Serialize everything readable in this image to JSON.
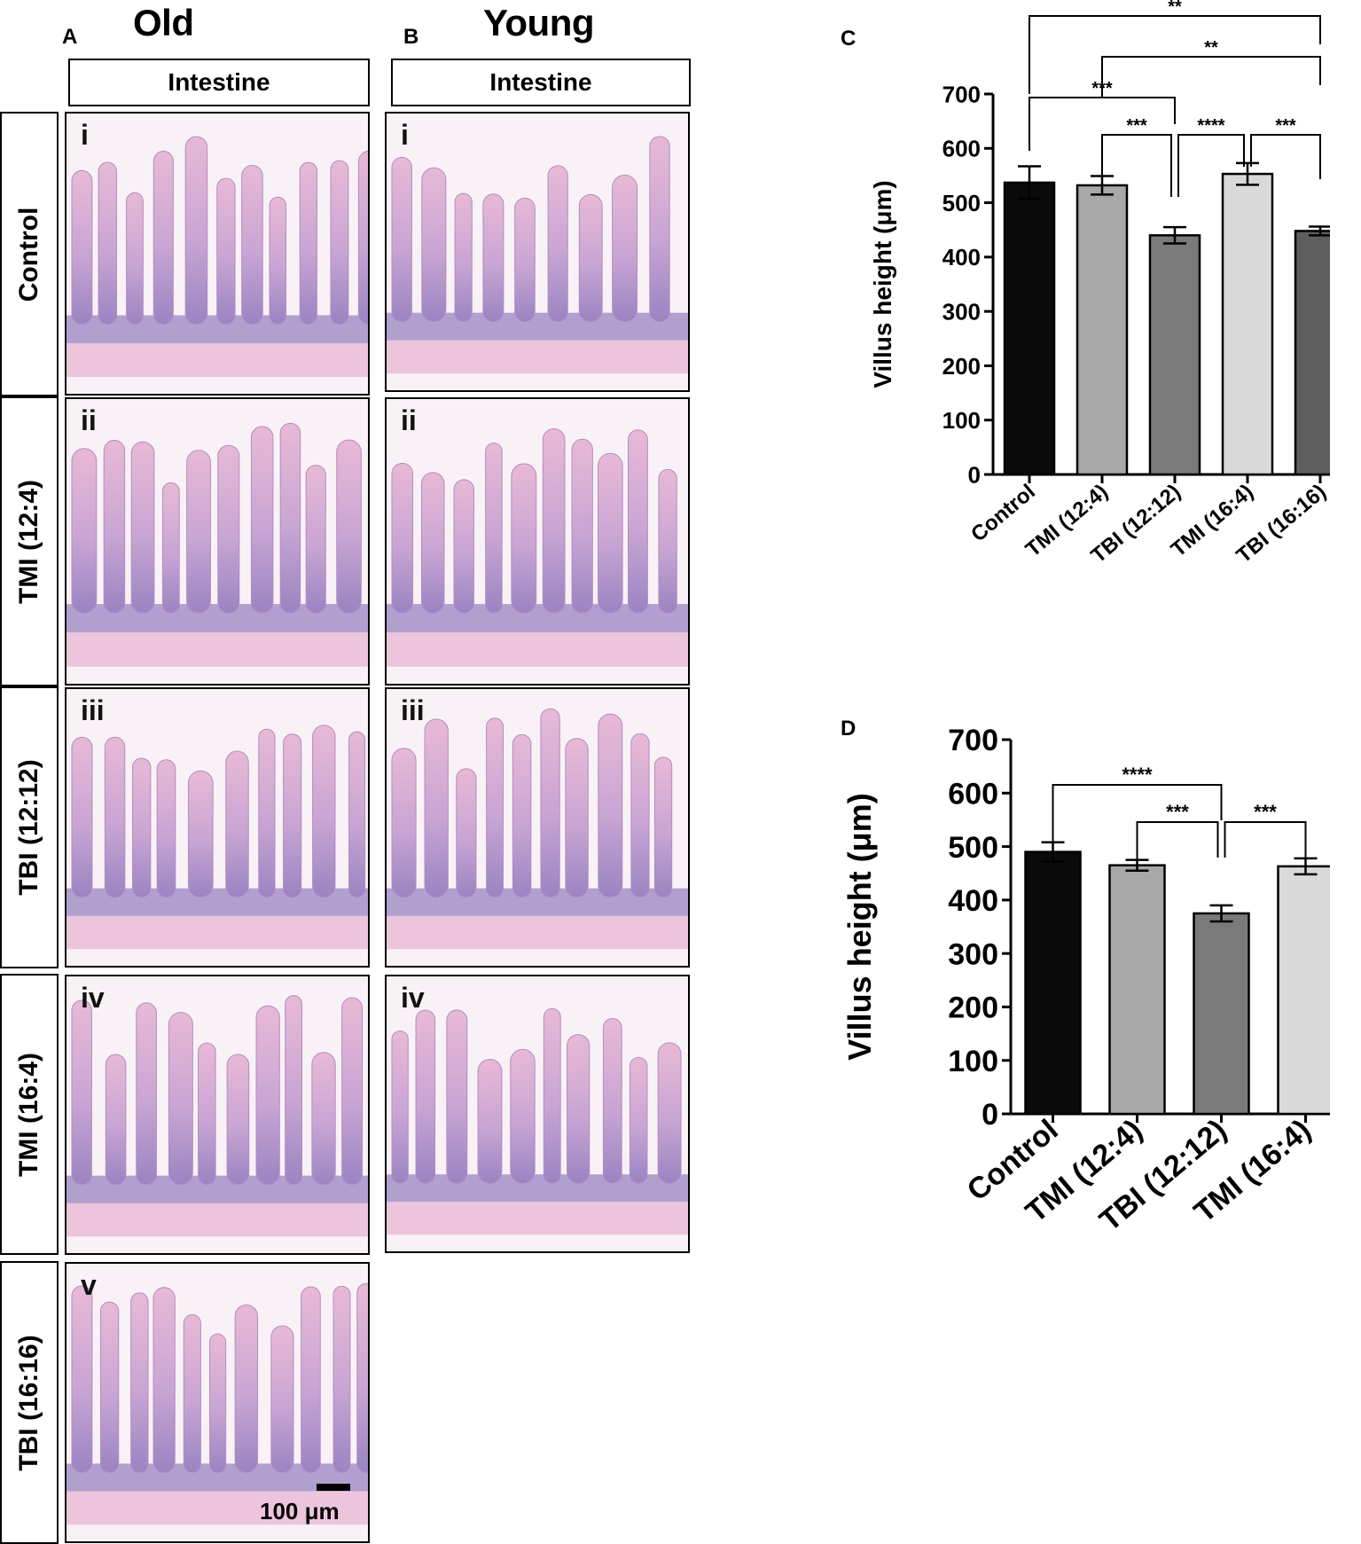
{
  "panels": {
    "A": {
      "letter": "A",
      "title": "Old",
      "header": "Intestine"
    },
    "B": {
      "letter": "B",
      "title": "Young",
      "header": "Intestine"
    },
    "C": {
      "letter": "C"
    },
    "D": {
      "letter": "D"
    }
  },
  "row_labels": [
    "Control",
    "TMI (12:4)",
    "TBI (12:12)",
    "TMI (16:4)",
    "TBI (16:16)"
  ],
  "micrograph_labels": {
    "old": [
      "i",
      "ii",
      "iii",
      "iv",
      "v"
    ],
    "young": [
      "i",
      "ii",
      "iii",
      "iv"
    ]
  },
  "scale_bar": {
    "label": "100 μm"
  },
  "colors": {
    "stain_pink": "#e8b9d6",
    "stain_purple": "#9a84c2",
    "bar_control": "#0a0a0a",
    "bar_tmi_12_4": "#a8a8a8",
    "bar_tbi_12_12": "#7a7a7a",
    "bar_tmi_16_4": "#d9d9d9",
    "bar_tbi_16_16": "#5e5e5e"
  },
  "chart_data": [
    {
      "panel": "C",
      "type": "bar",
      "ylabel": "Villus height (μm)",
      "ylim": [
        0,
        700
      ],
      "yticks": [
        0,
        100,
        200,
        300,
        400,
        500,
        600,
        700
      ],
      "categories": [
        "Control",
        "TMI (12:4)",
        "TBI (12:12)",
        "TMI (16:4)",
        "TBI (16:16)"
      ],
      "values": [
        537,
        532,
        440,
        553,
        448
      ],
      "errors": [
        30,
        17,
        15,
        20,
        8
      ],
      "significance": [
        {
          "from": 0,
          "to": 4,
          "label": "**"
        },
        {
          "from": 1,
          "to": 4,
          "label": "**"
        },
        {
          "from": 0,
          "to": 2,
          "label": "***"
        },
        {
          "from": 1,
          "to": 2,
          "label": "***"
        },
        {
          "from": 2,
          "to": 3,
          "label": "****"
        },
        {
          "from": 3,
          "to": 4,
          "label": "***"
        }
      ]
    },
    {
      "panel": "D",
      "type": "bar",
      "ylabel": "Villus height (μm)",
      "ylim": [
        0,
        700
      ],
      "yticks": [
        0,
        100,
        200,
        300,
        400,
        500,
        600,
        700
      ],
      "categories": [
        "Control",
        "TMI (12:4)",
        "TBI (12:12)",
        "TMI (16:4)"
      ],
      "values": [
        490,
        465,
        375,
        463
      ],
      "errors": [
        18,
        10,
        15,
        15
      ],
      "significance": [
        {
          "from": 0,
          "to": 2,
          "label": "****"
        },
        {
          "from": 1,
          "to": 2,
          "label": "***"
        },
        {
          "from": 2,
          "to": 3,
          "label": "***"
        }
      ]
    }
  ]
}
